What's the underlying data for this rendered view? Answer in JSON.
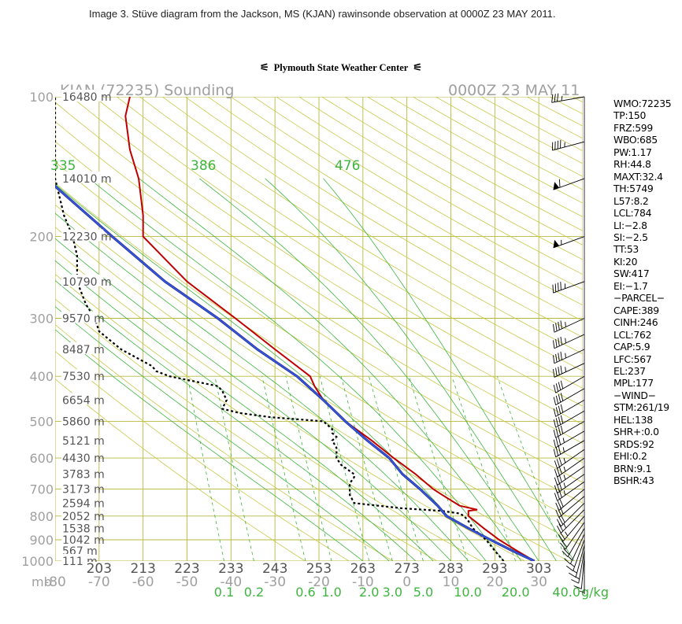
{
  "caption": "Image 3.  Stüve diagram from the Jackson, MS (KJAN) rawinsonde observation at 0000Z 23 MAY 2011.",
  "header": {
    "source": "Plymouth State Weather Center",
    "flag_glyph": "⚟"
  },
  "colors": {
    "temperature": "#c00000",
    "dewpoint": "#000000",
    "parcel": "#3355dd",
    "dry_adiabat": "#c9c94a",
    "moist_adiabat": "#3fb53f",
    "mixing_ratio": "#3fb53f",
    "isotherm": "#b8b840",
    "label_gray": "#a0a0a0",
    "label_green": "#3fb53f"
  },
  "chart_data": {
    "type": "line",
    "title": "KJAN (72235) Sounding",
    "time_label": "0000Z 23 MAY 11",
    "y_axis": {
      "unit": "mb",
      "scale": "log-pressure",
      "range": [
        1000,
        100
      ],
      "ticks": [
        "100",
        "200",
        "300",
        "400",
        "500",
        "600",
        "700",
        "800",
        "900",
        "1000"
      ]
    },
    "x_axis": {
      "unit": "°C",
      "range": [
        -80,
        40
      ],
      "ticks": [
        "-80",
        "-70",
        "-60",
        "-50",
        "-40",
        "-30",
        "-20",
        "-10",
        "0",
        "10",
        "20",
        "30"
      ]
    },
    "kelvin_labels": [
      "203",
      "213",
      "223",
      "233",
      "243",
      "253",
      "263",
      "273",
      "283",
      "293",
      "303"
    ],
    "mixing_ratio_labels": [
      "0.1",
      "0.2",
      "0.6",
      "1.0",
      "2.0",
      "3.0",
      "5.0",
      "10.0",
      "20.0",
      "40.0"
    ],
    "mixing_ratio_unit": "g/kg",
    "adiabat_labels": [
      "335",
      "386",
      "476"
    ],
    "height_labels": [
      {
        "p": 100,
        "h": "16480 m"
      },
      {
        "p": 150,
        "h": "14010 m"
      },
      {
        "p": 200,
        "h": "12230 m"
      },
      {
        "p": 250,
        "h": "10790 m"
      },
      {
        "p": 300,
        "h": "9570 m"
      },
      {
        "p": 350,
        "h": "8487 m"
      },
      {
        "p": 400,
        "h": "7530 m"
      },
      {
        "p": 450,
        "h": "6654 m"
      },
      {
        "p": 500,
        "h": "5860 m"
      },
      {
        "p": 550,
        "h": "5121 m"
      },
      {
        "p": 600,
        "h": "4430 m"
      },
      {
        "p": 650,
        "h": "3783 m"
      },
      {
        "p": 700,
        "h": "3173 m"
      },
      {
        "p": 750,
        "h": "2594 m"
      },
      {
        "p": 800,
        "h": "2052 m"
      },
      {
        "p": 850,
        "h": "1538 m"
      },
      {
        "p": 900,
        "h": "1042 m"
      },
      {
        "p": 950,
        "h": "567 m"
      },
      {
        "p": 1000,
        "h": "111 m"
      }
    ],
    "series": [
      {
        "name": "temperature",
        "points": [
          [
            1000,
            29
          ],
          [
            950,
            25
          ],
          [
            900,
            21
          ],
          [
            850,
            17.5
          ],
          [
            800,
            14
          ],
          [
            780,
            14
          ],
          [
            775,
            16
          ],
          [
            760,
            12
          ],
          [
            720,
            8
          ],
          [
            700,
            6
          ],
          [
            650,
            2
          ],
          [
            600,
            -3
          ],
          [
            550,
            -8
          ],
          [
            500,
            -14
          ],
          [
            450,
            -19
          ],
          [
            420,
            -21
          ],
          [
            400,
            -22
          ],
          [
            350,
            -30
          ],
          [
            300,
            -39
          ],
          [
            250,
            -50
          ],
          [
            200,
            -60
          ],
          [
            180,
            -60
          ],
          [
            150,
            -61
          ],
          [
            130,
            -63
          ],
          [
            110,
            -64
          ],
          [
            100,
            -63
          ]
        ]
      },
      {
        "name": "dewpoint",
        "points": [
          [
            1000,
            22
          ],
          [
            950,
            20
          ],
          [
            900,
            18
          ],
          [
            850,
            15
          ],
          [
            820,
            14
          ],
          [
            800,
            13
          ],
          [
            790,
            12
          ],
          [
            780,
            8
          ],
          [
            770,
            -1
          ],
          [
            750,
            -12
          ],
          [
            720,
            -13
          ],
          [
            700,
            -13
          ],
          [
            680,
            -13
          ],
          [
            660,
            -12
          ],
          [
            650,
            -12
          ],
          [
            620,
            -15
          ],
          [
            600,
            -16
          ],
          [
            570,
            -16
          ],
          [
            550,
            -17
          ],
          [
            540,
            -16
          ],
          [
            530,
            -17
          ],
          [
            520,
            -17
          ],
          [
            500,
            -19
          ],
          [
            490,
            -31
          ],
          [
            480,
            -38
          ],
          [
            470,
            -42
          ],
          [
            450,
            -41
          ],
          [
            430,
            -42
          ],
          [
            420,
            -43
          ],
          [
            400,
            -54
          ],
          [
            390,
            -57
          ],
          [
            380,
            -58
          ],
          [
            350,
            -65
          ],
          [
            320,
            -70
          ],
          [
            300,
            -71
          ],
          [
            280,
            -73
          ],
          [
            250,
            -75
          ],
          [
            220,
            -75
          ],
          [
            200,
            -76
          ],
          [
            180,
            -78
          ],
          [
            150,
            -80
          ],
          [
            130,
            -80
          ],
          [
            100,
            -80
          ]
        ]
      },
      {
        "name": "parcel",
        "points": [
          [
            1000,
            29
          ],
          [
            950,
            24
          ],
          [
            900,
            19
          ],
          [
            850,
            14
          ],
          [
            800,
            9
          ],
          [
            790,
            8.5
          ],
          [
            760,
            7
          ],
          [
            700,
            3
          ],
          [
            650,
            -1
          ],
          [
            600,
            -4
          ],
          [
            550,
            -9
          ],
          [
            500,
            -14
          ],
          [
            450,
            -19
          ],
          [
            400,
            -25
          ],
          [
            350,
            -34
          ],
          [
            300,
            -43
          ],
          [
            250,
            -55
          ],
          [
            200,
            -67
          ],
          [
            150,
            -82
          ]
        ]
      }
    ],
    "wind_barbs": [
      {
        "p": 1000,
        "spd": 5,
        "dir": 180
      },
      {
        "p": 975,
        "spd": 10,
        "dir": 185
      },
      {
        "p": 950,
        "spd": 15,
        "dir": 190
      },
      {
        "p": 925,
        "spd": 15,
        "dir": 195
      },
      {
        "p": 900,
        "spd": 15,
        "dir": 200
      },
      {
        "p": 875,
        "spd": 15,
        "dir": 205
      },
      {
        "p": 850,
        "spd": 20,
        "dir": 210
      },
      {
        "p": 825,
        "spd": 20,
        "dir": 215
      },
      {
        "p": 800,
        "spd": 25,
        "dir": 220
      },
      {
        "p": 775,
        "spd": 25,
        "dir": 225
      },
      {
        "p": 750,
        "spd": 30,
        "dir": 225
      },
      {
        "p": 725,
        "spd": 30,
        "dir": 230
      },
      {
        "p": 700,
        "spd": 30,
        "dir": 230
      },
      {
        "p": 675,
        "spd": 35,
        "dir": 235
      },
      {
        "p": 650,
        "spd": 35,
        "dir": 235
      },
      {
        "p": 625,
        "spd": 35,
        "dir": 235
      },
      {
        "p": 600,
        "spd": 35,
        "dir": 235
      },
      {
        "p": 575,
        "spd": 35,
        "dir": 235
      },
      {
        "p": 550,
        "spd": 35,
        "dir": 240
      },
      {
        "p": 525,
        "spd": 35,
        "dir": 240
      },
      {
        "p": 500,
        "spd": 40,
        "dir": 240
      },
      {
        "p": 475,
        "spd": 40,
        "dir": 240
      },
      {
        "p": 450,
        "spd": 40,
        "dir": 240
      },
      {
        "p": 425,
        "spd": 40,
        "dir": 240
      },
      {
        "p": 400,
        "spd": 40,
        "dir": 240
      },
      {
        "p": 375,
        "spd": 45,
        "dir": 245
      },
      {
        "p": 350,
        "spd": 45,
        "dir": 245
      },
      {
        "p": 325,
        "spd": 45,
        "dir": 245
      },
      {
        "p": 300,
        "spd": 45,
        "dir": 245
      },
      {
        "p": 250,
        "spd": 45,
        "dir": 250
      },
      {
        "p": 200,
        "spd": 55,
        "dir": 250
      },
      {
        "p": 150,
        "spd": 60,
        "dir": 250
      },
      {
        "p": 125,
        "spd": 45,
        "dir": 255
      },
      {
        "p": 100,
        "spd": 35,
        "dir": 260
      }
    ]
  },
  "stats": [
    "WMO:72235",
    "TP:150",
    "FRZ:599",
    "WBO:685",
    "PW:1.17",
    "RH:44.8",
    "MAXT:32.4",
    "TH:5749",
    "L57:8.2",
    "LCL:784",
    "LI:−2.8",
    "SI:−2.5",
    "TT:53",
    "KI:20",
    "SW:417",
    "EI:−1.7",
    "−PARCEL−",
    "CAPE:389",
    "CINH:246",
    "LCL:762",
    "CAP:5.9",
    "LFC:567",
    "EL:237",
    "MPL:177",
    "−WIND−",
    "STM:261/19",
    "HEL:138",
    "SHR+:0.0",
    "SRDS:92",
    "EHI:0.2",
    "BRN:9.1",
    "BSHR:43"
  ]
}
